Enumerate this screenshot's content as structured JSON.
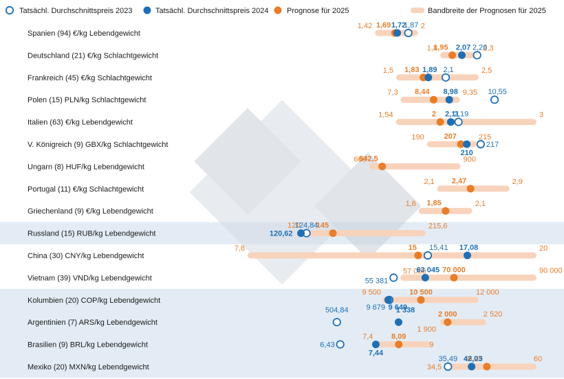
{
  "colors": {
    "blue": "#1f6fb5",
    "orange": "#e87d2a",
    "band": "#f8d3bb",
    "rowband": "#e3ecf5",
    "text": "#1a1a1a"
  },
  "chart_data": {
    "type": "dot-range",
    "legend": [
      {
        "key": "a2023",
        "label": "Tatsächl. Durchschnittspreis 2023",
        "marker": "open-circle-blue"
      },
      {
        "key": "a2024",
        "label": "Tatsächl. Durchschnittspreis 2024",
        "marker": "filled-circle-blue"
      },
      {
        "key": "f2025",
        "label": "Prognose für 2025",
        "marker": "filled-circle-orange"
      },
      {
        "key": "band",
        "label": "Bandbreite der Prognosen für 2025",
        "marker": "band"
      }
    ],
    "rows": [
      {
        "country": "Spanien (94)  €/kg Lebendgewicht",
        "min": 1.42,
        "max": 2,
        "f2025": 1.69,
        "a2024": 1.72,
        "a2023": 1.87,
        "labels": {
          "min": "1,42",
          "max": "2",
          "f2025": "1,69",
          "a2024": "1,72",
          "a2023": "1,87"
        }
      },
      {
        "country": "Deutschland (21) €/kg Schlachtgewicht",
        "min": 1.8,
        "max": 2.3,
        "f2025": 1.95,
        "a2024": 2.07,
        "a2023": 2.26,
        "labels": {
          "min": "1,8",
          "max": "2,3",
          "f2025": "1,95",
          "a2024": "2,07",
          "a2023": "2,26"
        }
      },
      {
        "country": "Frankreich (45) €/kg Schlachtgewicht",
        "min": 1.5,
        "max": 2.5,
        "f2025": 1.83,
        "a2024": 1.89,
        "a2023": 2.1,
        "labels": {
          "min": "1,5",
          "max": "2,5",
          "f2025": "1,83",
          "a2024": "1,89",
          "a2023": "2,1"
        }
      },
      {
        "country": "Polen (15) PLN/kg Schlachtgewicht",
        "min": 7.3,
        "max": 9.35,
        "f2025": 8.44,
        "a2024": 8.98,
        "a2023": 10.55,
        "labels": {
          "min": "7,3",
          "max": "9,35",
          "f2025": "8,44",
          "a2024": "8,98",
          "a2023": "10,55"
        }
      },
      {
        "country": "Italien (63) €/kg Lebendgewicht",
        "min": 1.54,
        "max": 3,
        "f2025": 2,
        "a2024": 2.11,
        "a2023": 2.19,
        "labels": {
          "min": "1,54",
          "max": "3",
          "f2025": "2",
          "a2024": "2,11",
          "a2023": "2,19"
        }
      },
      {
        "country": "V. Königreich (9) GBX/kg Schlachtgewicht",
        "min": 190,
        "max": 215,
        "f2025": 207,
        "a2024": 210,
        "a2023": 217,
        "labels": {
          "min": "190",
          "max": "215",
          "f2025": "207",
          "a2024": "210",
          "a2023": "217"
        }
      },
      {
        "country": "Ungarn (8) HUF/kg Lebendgewicht",
        "min": 600,
        "max": 900,
        "f2025": 642.5,
        "a2024": null,
        "a2023": null,
        "labels": {
          "min": "600",
          "max": "900",
          "f2025": "642,5"
        }
      },
      {
        "country": "Portugal (11) €/kg Schlachtgewicht",
        "min": 2.1,
        "max": 2.9,
        "f2025": 2.47,
        "a2024": null,
        "a2023": null,
        "labels": {
          "min": "2,1",
          "max": "2,9",
          "f2025": "2,47"
        }
      },
      {
        "country": "Griechenland (9) €/kg Lebendgewicht",
        "min": 1.6,
        "max": 2.1,
        "f2025": 1.85,
        "a2024": null,
        "a2023": null,
        "labels": {
          "min": "1,6",
          "max": "2,1",
          "f2025": "1,85"
        }
      },
      {
        "country": "Russland (15) RUB/kg Lebendgewicht",
        "min": 120,
        "max": 215.6,
        "f2025": 145,
        "a2024": 120.62,
        "a2023": 124.84,
        "labels": {
          "min": "120",
          "max": "215,6",
          "f2025": "145",
          "a2024": "120,62",
          "a2023": "124,84"
        }
      },
      {
        "country": "China (30) CNY/kg Lebendgewicht",
        "min": 7.8,
        "max": 20,
        "f2025": 15,
        "a2024": 17.08,
        "a2023": 15.41,
        "labels": {
          "min": "7,8",
          "max": "20",
          "f2025": "15",
          "a2024": "17,08",
          "a2023": "15,41"
        }
      },
      {
        "country": "Vietnam (39) VND/kg Lebendgewicht",
        "min": 57000,
        "max": 90000,
        "f2025": 70000,
        "a2024": 63045,
        "a2023": 55381,
        "labels": {
          "min": "57 000",
          "max": "90 000",
          "f2025": "70 000",
          "a2024": "63 045",
          "a2023": "55 381"
        }
      },
      {
        "country": "Kolumbien (20) COP/kg Lebendgewicht",
        "min": 9500,
        "max": 12000,
        "f2025": 10500,
        "a2024": 9649,
        "a2023": 9679,
        "labels": {
          "min": "9 500",
          "max": "12 000",
          "f2025": "10 500",
          "a2024": "9 649",
          "a2023": "9 679"
        }
      },
      {
        "country": "Argentinien (7) ARS/kg Lebendgewicht",
        "min": 1900,
        "max": 2520,
        "f2025": 2000,
        "a2024": 1338,
        "a2023": 504.84,
        "labels": {
          "min": "1 900",
          "max": "2 520",
          "f2025": "2 000",
          "a2024": "1 338",
          "a2023": "504,84"
        }
      },
      {
        "country": "Brasilien (9) BRL/kg Lebendgewicht",
        "min": 7.4,
        "max": 9,
        "f2025": 8.09,
        "a2024": 7.44,
        "a2023": 6.43,
        "labels": {
          "min": "7,4",
          "max": "9",
          "f2025": "8,09",
          "a2024": "7,44",
          "a2023": "6,43"
        }
      },
      {
        "country": "Mexiko (20) MXN/kg Lebendgewicht",
        "min": 34.5,
        "max": 60,
        "f2025": 46.25,
        "a2024": 42.03,
        "a2023": 35.49,
        "labels": {
          "min": "34,5",
          "max": "60",
          "f2025": "46,25",
          "a2024": "42,03",
          "a2023": "35,49"
        }
      }
    ]
  }
}
